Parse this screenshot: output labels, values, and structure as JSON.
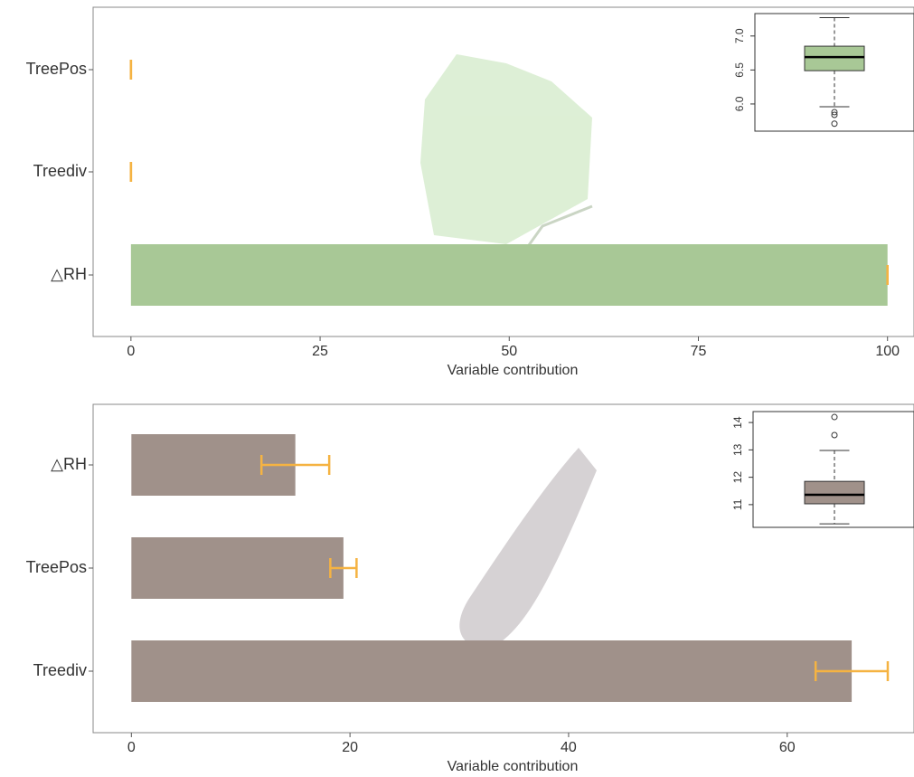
{
  "chart_data": [
    {
      "type": "bar",
      "orientation": "horizontal",
      "categories": [
        "TreePos",
        "Treediv",
        "△RH"
      ],
      "values": [
        0,
        0,
        100
      ],
      "errors": [
        0,
        0,
        0
      ],
      "color": "#a8c896",
      "error_color": "#f5b342",
      "xlim": [
        -5,
        103.5
      ],
      "xticks": [
        0,
        25,
        50,
        75,
        100
      ],
      "xlabel": "Variable contribution",
      "inset": {
        "type": "box",
        "ylim": [
          5.6,
          7.33
        ],
        "yticks": [
          {
            "value": 6,
            "label": "6.0"
          },
          6.5,
          {
            "value": 7,
            "label": "7.0"
          }
        ],
        "q1": 6.49,
        "median": 6.69,
        "q3": 6.85,
        "whisker_low": 5.96,
        "whisker_high": 7.27,
        "outliers": [
          5.88,
          5.84,
          5.71
        ],
        "color": "#a8c896"
      }
    },
    {
      "type": "bar",
      "orientation": "horizontal",
      "categories": [
        "△RH",
        "TreePos",
        "Treediv"
      ],
      "values": [
        15.0,
        19.4,
        65.9
      ],
      "errors": [
        3.1,
        1.2,
        3.3
      ],
      "color": "#a0918a",
      "error_color": "#f5b342",
      "xlim": [
        -3.5,
        71.6
      ],
      "xticks": [
        0,
        20,
        40,
        60
      ],
      "xlabel": "Variable contribution",
      "inset": {
        "type": "box",
        "ylim": [
          10.17,
          14.4
        ],
        "yticks": [
          11,
          12,
          13,
          14
        ],
        "q1": 11.03,
        "median": 11.36,
        "q3": 11.85,
        "whisker_low": 10.3,
        "whisker_high": 12.98,
        "outliers": [
          13.54,
          14.2
        ],
        "color": "#a0918a"
      }
    }
  ]
}
